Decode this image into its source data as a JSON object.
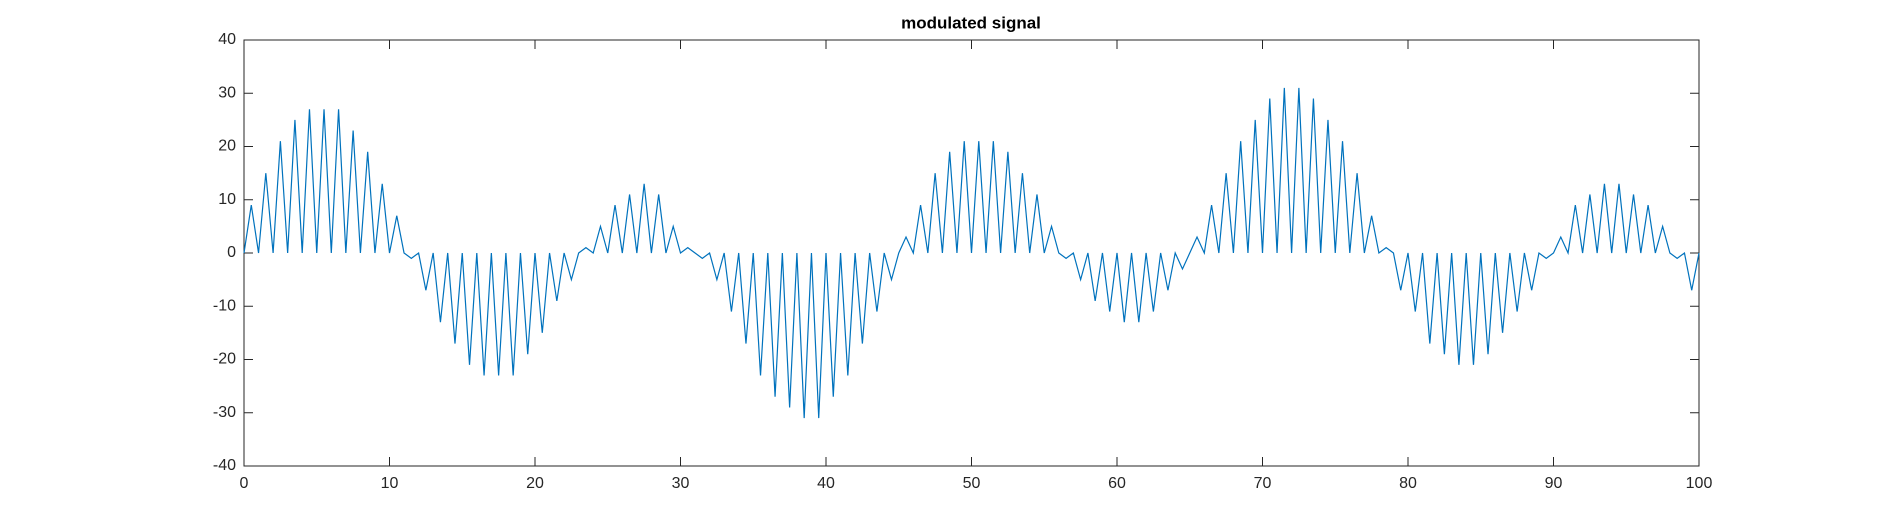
{
  "chart_data": {
    "type": "line",
    "title": "modulated signal",
    "x": [
      0,
      0.5,
      1,
      1.5,
      2,
      2.5,
      3,
      3.5,
      4,
      4.5,
      5,
      5.5,
      6,
      6.5,
      7,
      7.5,
      8,
      8.5,
      9,
      9.5,
      10,
      10.5,
      11,
      11.5,
      12,
      12.5,
      13,
      13.5,
      14,
      14.5,
      15,
      15.5,
      16,
      16.5,
      17,
      17.5,
      18,
      18.5,
      19,
      19.5,
      20,
      20.5,
      21,
      21.5,
      22,
      22.5,
      23,
      23.5,
      24,
      24.5,
      25,
      25.5,
      26,
      26.5,
      27,
      27.5,
      28,
      28.5,
      29,
      29.5,
      30,
      30.5,
      31,
      31.5,
      32,
      32.5,
      33,
      33.5,
      34,
      34.5,
      35,
      35.5,
      36,
      36.5,
      37,
      37.5,
      38,
      38.5,
      39,
      39.5,
      40,
      40.5,
      41,
      41.5,
      42,
      42.5,
      43,
      43.5,
      44,
      44.5,
      45,
      45.5,
      46,
      46.5,
      47,
      47.5,
      48,
      48.5,
      49,
      49.5,
      50,
      50.5,
      51,
      51.5,
      52,
      52.5,
      53,
      53.5,
      54,
      54.5,
      55,
      55.5,
      56,
      56.5,
      57,
      57.5,
      58,
      58.5,
      59,
      59.5,
      60,
      60.5,
      61,
      61.5,
      62,
      62.5,
      63,
      63.5,
      64,
      64.5,
      65,
      65.5,
      66,
      66.5,
      67,
      67.5,
      68,
      68.5,
      69,
      69.5,
      70,
      70.5,
      71,
      71.5,
      72,
      72.5,
      73,
      73.5,
      74,
      74.5,
      75,
      75.5,
      76,
      76.5,
      77,
      77.5,
      78,
      78.5,
      79,
      79.5,
      80,
      80.5,
      81,
      81.5,
      82,
      82.5,
      83,
      83.5,
      84,
      84.5,
      85,
      85.5,
      86,
      86.5,
      87,
      87.5,
      88,
      88.5,
      89,
      89.5,
      90,
      90.5,
      91,
      91.5,
      92,
      92.5,
      93,
      93.5,
      94,
      94.5,
      95,
      95.5,
      96,
      96.5,
      97,
      97.5,
      98,
      98.5,
      99,
      99.5,
      100
    ],
    "series": [
      {
        "color": "#0072bd",
        "values": [
          0,
          9,
          0,
          15,
          0,
          21,
          0,
          25,
          0,
          27,
          0,
          27,
          0,
          27,
          0,
          23,
          0,
          19,
          0,
          13,
          0,
          7,
          0,
          -1,
          0,
          -7,
          0,
          -13,
          0,
          -17,
          0,
          -21,
          0,
          -23,
          0,
          -23,
          0,
          -23,
          0,
          -19,
          0,
          -15,
          0,
          -9,
          0,
          -5,
          0,
          1,
          0,
          5,
          0,
          9,
          0,
          11,
          0,
          13,
          0,
          11,
          0,
          5,
          0,
          1,
          0,
          -1,
          0,
          -5,
          0,
          -11,
          0,
          -17,
          0,
          -23,
          0,
          -27,
          0,
          -29,
          0,
          -31,
          0,
          -31,
          0,
          -27,
          0,
          -23,
          0,
          -17,
          0,
          -11,
          0,
          -5,
          0,
          3,
          0,
          9,
          0,
          15,
          0,
          19,
          0,
          21,
          0,
          21,
          0,
          21,
          0,
          19,
          0,
          15,
          0,
          11,
          0,
          5,
          0,
          -1,
          0,
          -5,
          0,
          -9,
          0,
          -11,
          0,
          -13,
          0,
          -13,
          0,
          -11,
          0,
          -7,
          0,
          -3,
          0,
          3,
          0,
          9,
          0,
          15,
          0,
          21,
          0,
          25,
          0,
          29,
          0,
          31,
          0,
          31,
          0,
          29,
          0,
          25,
          0,
          21,
          0,
          15,
          0,
          7,
          0,
          1,
          0,
          -7,
          0,
          -11,
          0,
          -17,
          0,
          -19,
          0,
          -21,
          0,
          -21,
          0,
          -19,
          0,
          -15,
          0,
          -11,
          0,
          -7,
          0,
          -1,
          0,
          3,
          0,
          9,
          0,
          11,
          0,
          13,
          0,
          13,
          0,
          11,
          0,
          9,
          0,
          5,
          0,
          -1,
          0,
          -7,
          0
        ]
      }
    ],
    "xlim": [
      0,
      100
    ],
    "xticks": [
      0,
      10,
      20,
      30,
      40,
      50,
      60,
      70,
      80,
      90,
      100
    ],
    "ylim": [
      -40,
      40
    ],
    "yticks": [
      -40,
      -30,
      -20,
      -10,
      0,
      10,
      20,
      30,
      40
    ]
  }
}
